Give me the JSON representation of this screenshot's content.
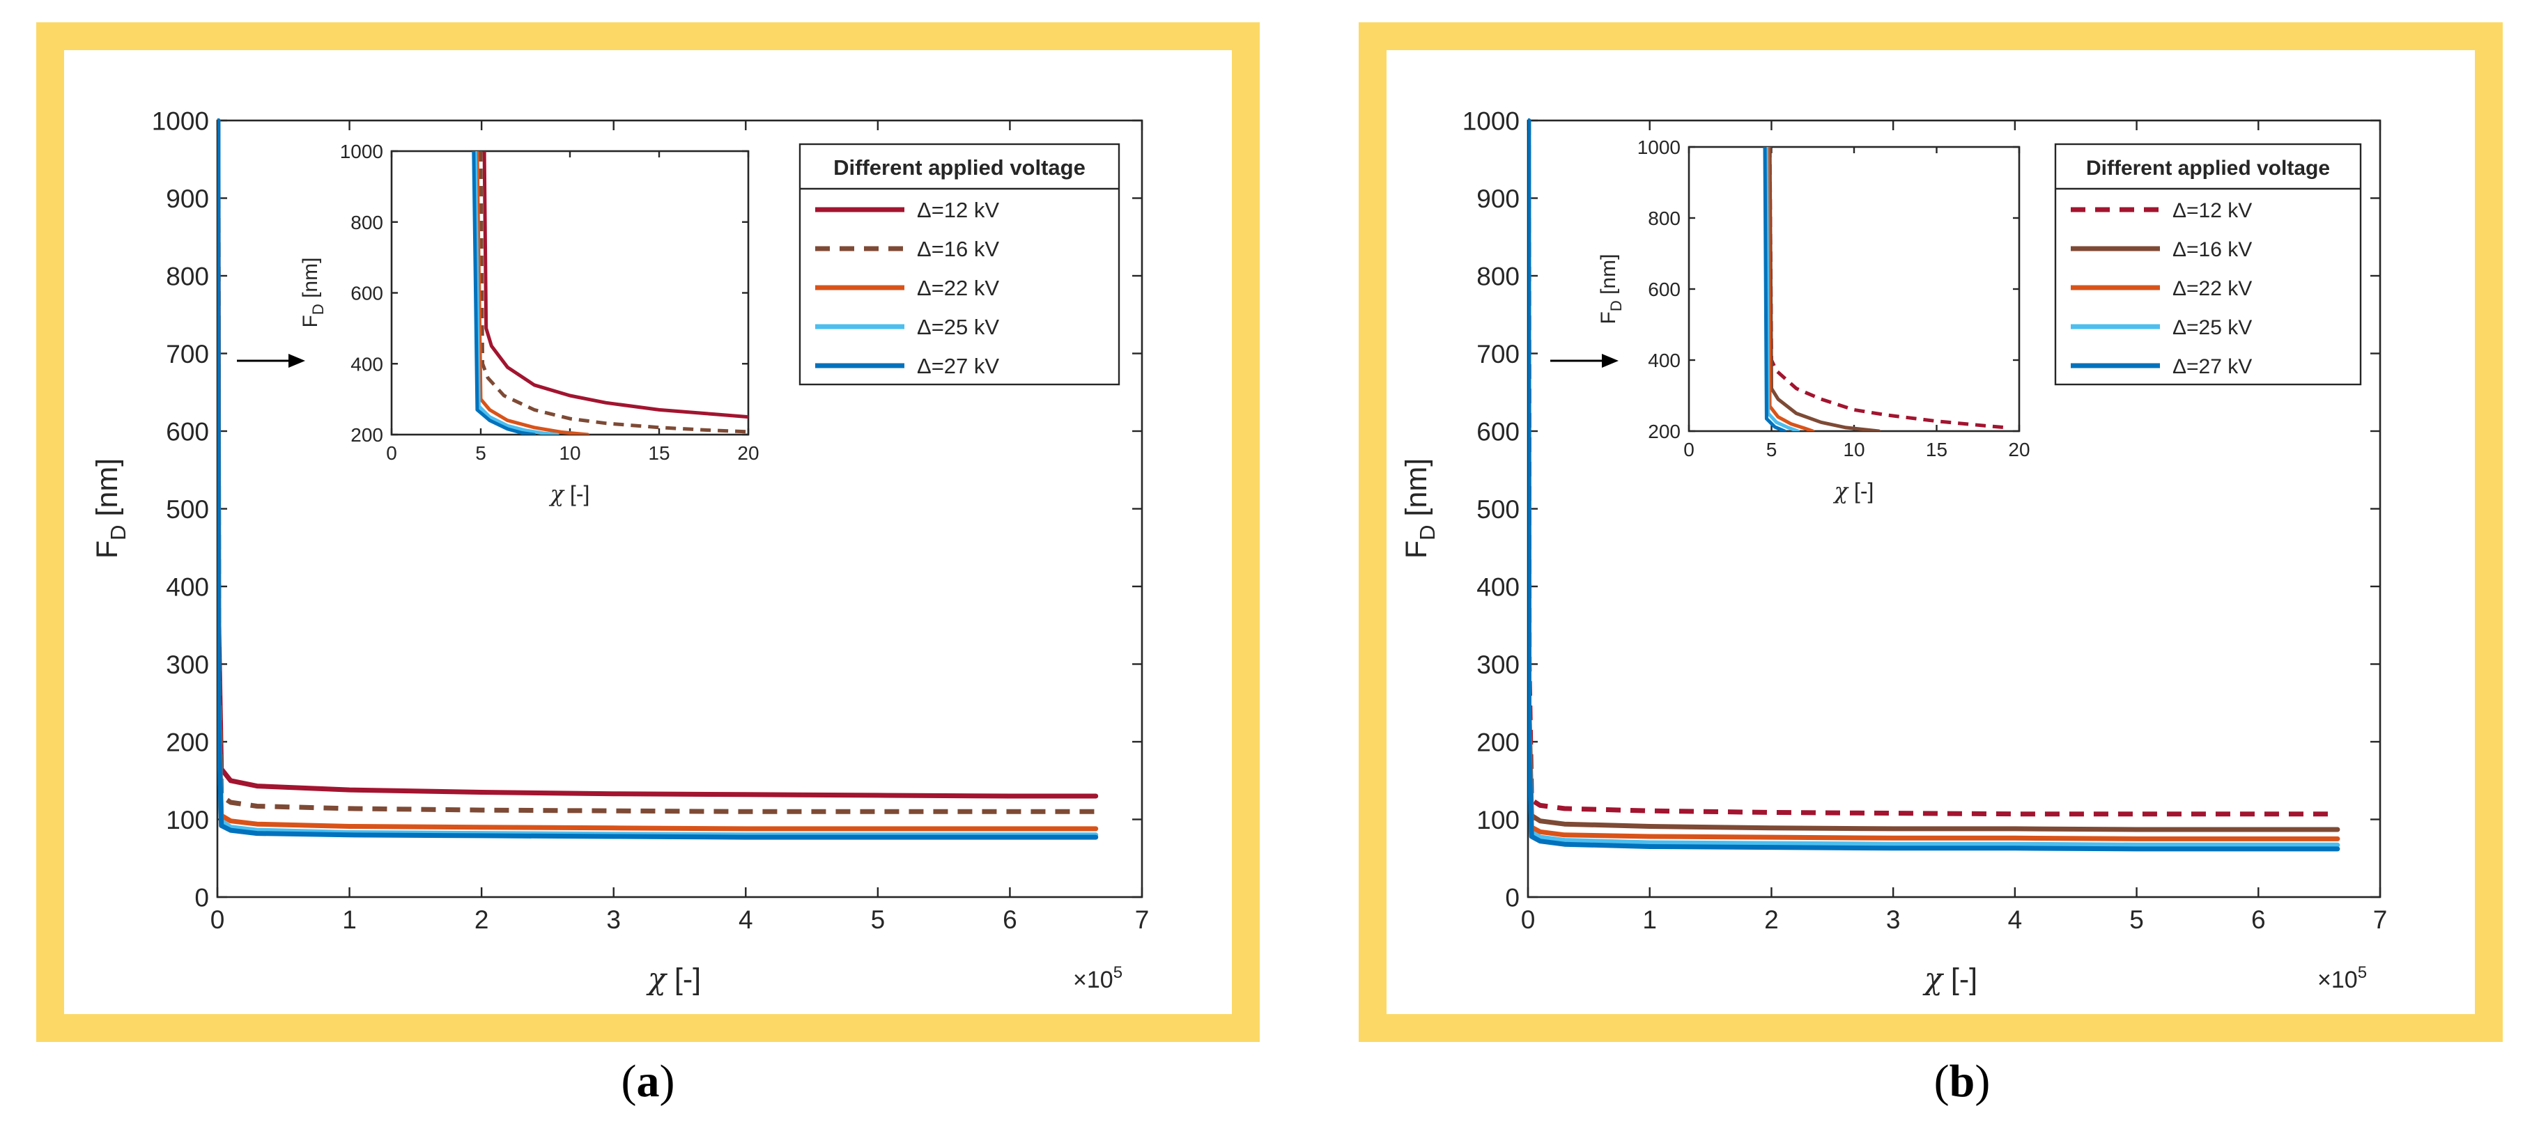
{
  "colors": {
    "frame": "#fcd966",
    "axis": "#262626",
    "v12": "#a2142f",
    "v16": "#7e4a35",
    "v22": "#d95319",
    "v25": "#4dbeee",
    "v27": "#0072bd"
  },
  "figure": {
    "panels": [
      {
        "label_open": "(",
        "label_letter": "a",
        "label_close": ")",
        "x_multiplier": "×10",
        "x_multiplier_exp": "5",
        "y_label_base": "F",
        "y_label_sub": "D",
        "y_label_unit": " [nm]",
        "x_label_sym": "χ",
        "x_label_unit": " [-]",
        "legend_title": "Different applied voltage"
      },
      {
        "label_open": "(",
        "label_letter": "b",
        "label_close": ")",
        "x_multiplier": "×10",
        "x_multiplier_exp": "5",
        "y_label_base": "F",
        "y_label_sub": "D",
        "y_label_unit": " [nm]",
        "x_label_sym": "χ",
        "x_label_unit": " [-]",
        "legend_title": "Different applied voltage"
      }
    ]
  },
  "chart_data": [
    {
      "type": "line",
      "panel": "a",
      "xlabel": "χ [-]",
      "ylabel": "F_D [nm]",
      "xlim": [
        0,
        7
      ],
      "ylim": [
        0,
        1000
      ],
      "x_scale_note": "×10^5",
      "xticks": [
        "0",
        "1",
        "2",
        "3",
        "4",
        "5",
        "6",
        "7"
      ],
      "yticks": [
        "0",
        "100",
        "200",
        "300",
        "400",
        "500",
        "600",
        "700",
        "800",
        "900",
        "1000"
      ],
      "grid": false,
      "legend": {
        "title": "Different applied voltage",
        "position": "top-right"
      },
      "series": [
        {
          "name": "Δ=12 kV",
          "color": "#a2142f",
          "dash": false,
          "x": [
            0.005,
            0.01,
            0.03,
            0.1,
            0.3,
            1,
            2,
            3,
            4,
            5,
            6,
            6.65
          ],
          "y": [
            1000,
            350,
            165,
            150,
            143,
            138,
            135,
            133,
            132,
            131,
            130,
            130
          ]
        },
        {
          "name": "Δ=16 kV",
          "color": "#7e4a35",
          "dash": true,
          "x": [
            0.005,
            0.01,
            0.03,
            0.1,
            0.3,
            1,
            2,
            3,
            4,
            5,
            6,
            6.65
          ],
          "y": [
            1000,
            300,
            130,
            122,
            117,
            114,
            112,
            111,
            110,
            110,
            110,
            110
          ]
        },
        {
          "name": "Δ=22 kV",
          "color": "#d95319",
          "dash": false,
          "x": [
            0.004,
            0.008,
            0.03,
            0.1,
            0.3,
            1,
            2,
            3,
            4,
            5,
            6,
            6.65
          ],
          "y": [
            1000,
            260,
            105,
            98,
            94,
            91,
            90,
            89,
            88,
            88,
            88,
            88
          ]
        },
        {
          "name": "Δ=25 kV",
          "color": "#4dbeee",
          "dash": false,
          "x": [
            0.004,
            0.008,
            0.03,
            0.1,
            0.3,
            1,
            2,
            3,
            4,
            5,
            6,
            6.65
          ],
          "y": [
            1000,
            250,
            98,
            90,
            86,
            83,
            82,
            81,
            80,
            80,
            80,
            80
          ]
        },
        {
          "name": "Δ=27 kV",
          "color": "#0072bd",
          "dash": false,
          "x": [
            0.004,
            0.008,
            0.03,
            0.1,
            0.3,
            1,
            2,
            3,
            4,
            5,
            6,
            6.65
          ],
          "y": [
            1000,
            240,
            92,
            86,
            82,
            80,
            79,
            78,
            77,
            77,
            77,
            77
          ]
        }
      ],
      "inset": {
        "xlabel": "χ [-]",
        "ylabel": "F_D [nm]",
        "xlim": [
          0,
          20
        ],
        "ylim": [
          200,
          1000
        ],
        "xticks": [
          "0",
          "5",
          "10",
          "15",
          "20"
        ],
        "yticks": [
          "200",
          "400",
          "600",
          "800",
          "1000"
        ],
        "series": [
          {
            "name": "Δ=12 kV",
            "x": [
              5.2,
              5.3,
              5.6,
              6.5,
              8,
              10,
              12,
              15,
              18,
              20
            ],
            "y": [
              1000,
              500,
              450,
              390,
              340,
              310,
              290,
              270,
              258,
              250
            ]
          },
          {
            "name": "Δ=16 kV",
            "x": [
              5.0,
              5.1,
              5.4,
              6.3,
              8,
              10,
              12,
              15,
              18,
              20
            ],
            "y": [
              1000,
              400,
              360,
              310,
              270,
              245,
              232,
              220,
              212,
              208
            ]
          },
          {
            "name": "Δ=22 kV",
            "x": [
              4.8,
              5.0,
              5.5,
              6.5,
              8,
              9.5,
              11
            ],
            "y": [
              1000,
              300,
              270,
              240,
              220,
              207,
              200
            ]
          },
          {
            "name": "Δ=25 kV",
            "x": [
              4.7,
              4.9,
              5.5,
              6.5,
              7.5,
              8.5,
              9.3
            ],
            "y": [
              1000,
              280,
              250,
              225,
              212,
              204,
              200
            ]
          },
          {
            "name": "Δ=27 kV",
            "x": [
              4.6,
              4.8,
              5.5,
              6.5,
              7.3,
              8
            ],
            "y": [
              1000,
              270,
              240,
              216,
              205,
              200
            ]
          }
        ]
      }
    },
    {
      "type": "line",
      "panel": "b",
      "xlabel": "χ [-]",
      "ylabel": "F_D [nm]",
      "xlim": [
        0,
        7
      ],
      "ylim": [
        0,
        1000
      ],
      "x_scale_note": "×10^5",
      "xticks": [
        "0",
        "1",
        "2",
        "3",
        "4",
        "5",
        "6",
        "7"
      ],
      "yticks": [
        "0",
        "100",
        "200",
        "300",
        "400",
        "500",
        "600",
        "700",
        "800",
        "900",
        "1000"
      ],
      "grid": false,
      "legend": {
        "title": "Different applied voltage",
        "position": "top-right"
      },
      "series": [
        {
          "name": "Δ=12 kV",
          "color": "#a2142f",
          "dash": true,
          "x": [
            0.005,
            0.01,
            0.03,
            0.1,
            0.3,
            1,
            2,
            3,
            4,
            5,
            6,
            6.65
          ],
          "y": [
            1000,
            300,
            125,
            118,
            114,
            111,
            109,
            108,
            107,
            107,
            107,
            107
          ]
        },
        {
          "name": "Δ=16 kV",
          "color": "#7e4a35",
          "dash": false,
          "x": [
            0.004,
            0.008,
            0.03,
            0.1,
            0.3,
            1,
            2,
            3,
            4,
            5,
            6,
            6.65
          ],
          "y": [
            1000,
            250,
            105,
            98,
            94,
            91,
            89,
            88,
            88,
            87,
            87,
            87
          ]
        },
        {
          "name": "Δ=22 kV",
          "color": "#d95319",
          "dash": false,
          "x": [
            0.004,
            0.008,
            0.03,
            0.1,
            0.3,
            1,
            2,
            3,
            4,
            5,
            6,
            6.65
          ],
          "y": [
            1000,
            220,
            90,
            84,
            80,
            78,
            77,
            76,
            76,
            75,
            75,
            75
          ]
        },
        {
          "name": "Δ=25 kV",
          "color": "#4dbeee",
          "dash": false,
          "x": [
            0.004,
            0.008,
            0.03,
            0.1,
            0.3,
            1,
            2,
            3,
            4,
            5,
            6,
            6.65
          ],
          "y": [
            1000,
            210,
            83,
            77,
            73,
            70,
            69,
            68,
            68,
            67,
            67,
            67
          ]
        },
        {
          "name": "Δ=27 kV",
          "color": "#0072bd",
          "dash": false,
          "x": [
            0.004,
            0.008,
            0.03,
            0.1,
            0.3,
            1,
            2,
            3,
            4,
            5,
            6,
            6.65
          ],
          "y": [
            1000,
            200,
            78,
            72,
            68,
            65,
            64,
            63,
            63,
            62,
            62,
            62
          ]
        }
      ],
      "inset": {
        "xlabel": "χ [-]",
        "ylabel": "F_D [nm]",
        "xlim": [
          0,
          20
        ],
        "ylim": [
          200,
          1000
        ],
        "xticks": [
          "0",
          "5",
          "10",
          "15",
          "20"
        ],
        "yticks": [
          "200",
          "400",
          "600",
          "800",
          "1000"
        ],
        "series": [
          {
            "name": "Δ=12 kV",
            "x": [
              4.9,
              5.0,
              5.3,
              6.5,
              8,
              10,
              12,
              15,
              18,
              19.2
            ],
            "y": [
              1000,
              400,
              370,
              320,
              290,
              260,
              245,
              228,
              215,
              210
            ]
          },
          {
            "name": "Δ=16 kV",
            "x": [
              4.9,
              5.0,
              5.4,
              6.5,
              8,
              9.5,
              11.5
            ],
            "y": [
              1000,
              320,
              290,
              250,
              225,
              210,
              200
            ]
          },
          {
            "name": "Δ=22 kV",
            "x": [
              4.8,
              4.9,
              5.4,
              6.2,
              7,
              7.5
            ],
            "y": [
              1000,
              270,
              240,
              220,
              208,
              200
            ]
          },
          {
            "name": "Δ=25 kV",
            "x": [
              4.7,
              4.8,
              5.3,
              6,
              6.6
            ],
            "y": [
              1000,
              250,
              225,
              210,
              200
            ]
          },
          {
            "name": "Δ=27 kV",
            "x": [
              4.6,
              4.7,
              5.2,
              5.8
            ],
            "y": [
              1000,
              235,
              212,
              200
            ]
          }
        ]
      }
    }
  ]
}
